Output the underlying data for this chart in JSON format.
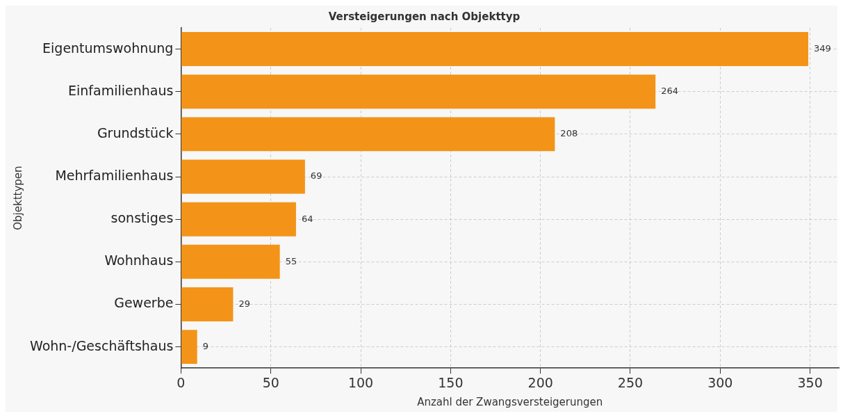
{
  "chart_data": {
    "type": "bar",
    "orientation": "horizontal",
    "title": "Versteigerungen nach Objekttyp",
    "xlabel": "Anzahl der Zwangsversteigerungen",
    "ylabel": "Objekttypen",
    "categories": [
      "Eigentumswohnung",
      "Einfamilienhaus",
      "Grundstück",
      "Mehrfamilienhaus",
      "sonstiges",
      "Wohnhaus",
      "Gewerbe",
      "Wohn-/Geschäftshaus"
    ],
    "values": [
      349,
      264,
      208,
      69,
      64,
      55,
      29,
      9
    ],
    "color": "#f39418",
    "xlim": [
      0,
      366
    ],
    "xticks": [
      0,
      50,
      100,
      150,
      200,
      250,
      300,
      350
    ],
    "grid": true,
    "data_labels": true,
    "legend": false
  }
}
